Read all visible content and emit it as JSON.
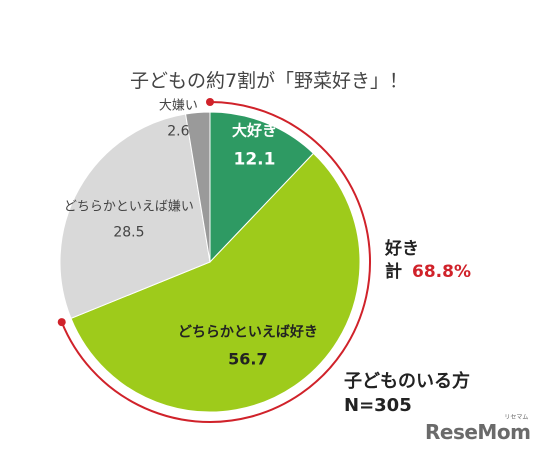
{
  "chart_data": {
    "type": "pie",
    "title": "子どもの約7割が「野菜好き」！",
    "slices": [
      {
        "label": "大好き",
        "value": 12.1,
        "color": "#2e9a63",
        "text_color": "#ffffff"
      },
      {
        "label": "どちらかといえば好き",
        "value": 56.7,
        "color": "#9ecb1b",
        "text_color": "#222222"
      },
      {
        "label": "どちらかといえば嫌い",
        "value": 28.5,
        "color": "#d9d9d9",
        "text_color": "#444444"
      },
      {
        "label": "大嫌い",
        "value": 2.6,
        "color": "#9a9a9a",
        "text_color": "#444444"
      }
    ],
    "start": "12 o'clock",
    "direction": "clockwise",
    "total_annotation": {
      "label_line1": "好き",
      "label_line2": "計",
      "value": "68.8%"
    },
    "sample": {
      "line1": "子どものいる方",
      "line2": "N=305"
    }
  },
  "colors": {
    "arc": "#d0222a"
  },
  "logo": {
    "text": "ReseMom",
    "ruby": "リセマム"
  }
}
